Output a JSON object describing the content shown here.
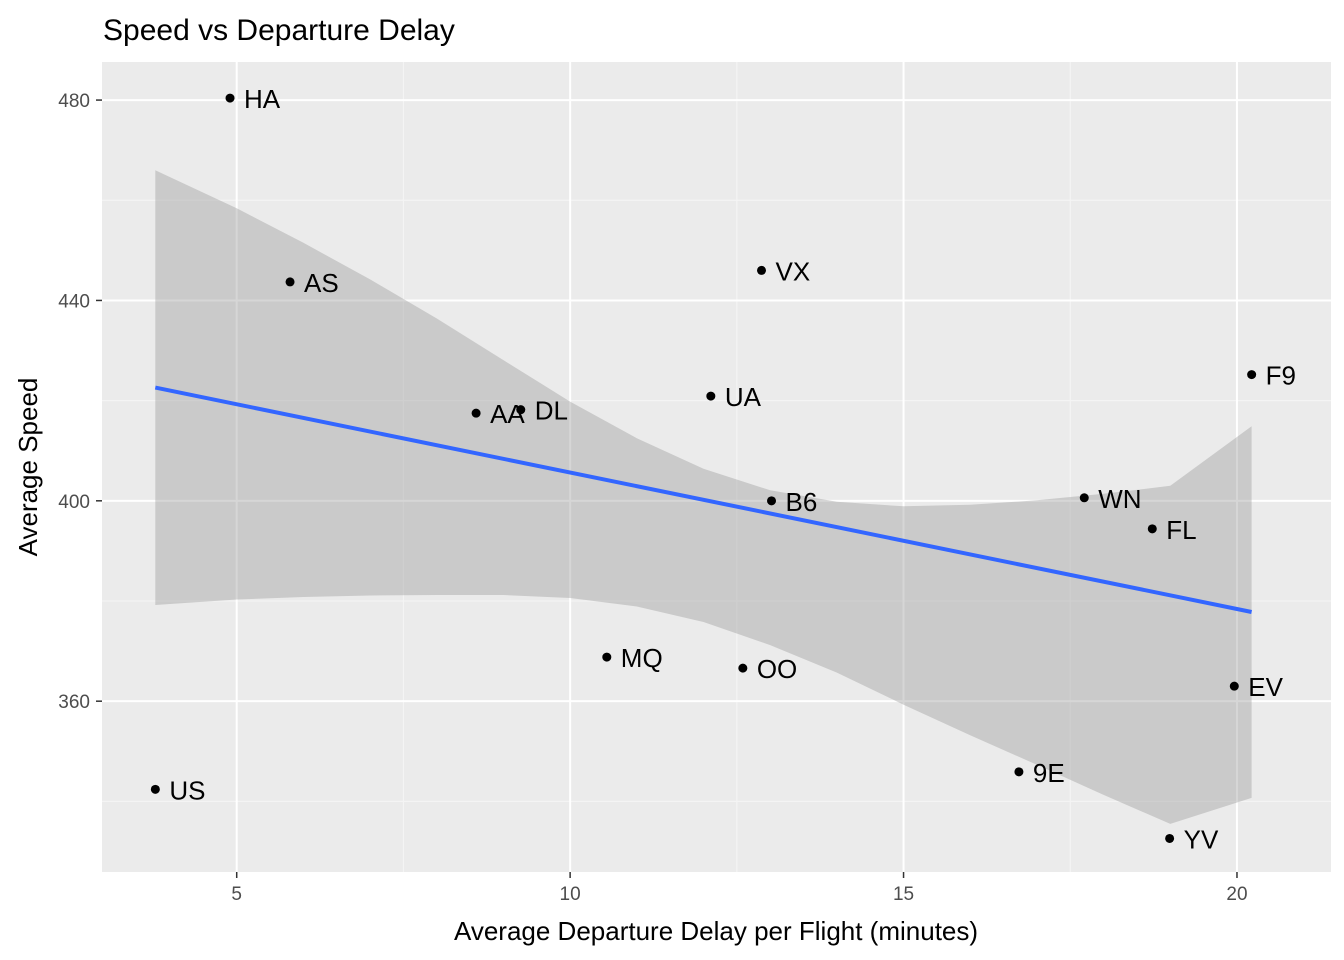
{
  "chart_data": {
    "type": "scatter",
    "title": "Speed vs Departure Delay",
    "xlabel": "Average Departure Delay per Flight (minutes)",
    "ylabel": "Average Speed",
    "xlim": [
      2.98,
      21.41
    ],
    "ylim": [
      325.9,
      487.6
    ],
    "xticks": [
      5,
      10,
      15,
      20
    ],
    "yticks": [
      360,
      400,
      440,
      480
    ],
    "grid": true,
    "legend": "none",
    "points": [
      {
        "label": "HA",
        "x": 4.9,
        "y": 480.4
      },
      {
        "label": "AS",
        "x": 5.8,
        "y": 443.7
      },
      {
        "label": "VX",
        "x": 12.87,
        "y": 446.0
      },
      {
        "label": "F9",
        "x": 20.22,
        "y": 425.2
      },
      {
        "label": "UA",
        "x": 12.11,
        "y": 420.9
      },
      {
        "label": "AA",
        "x": 8.59,
        "y": 417.5
      },
      {
        "label": "DL",
        "x": 9.26,
        "y": 418.2
      },
      {
        "label": "B6",
        "x": 13.02,
        "y": 400.0
      },
      {
        "label": "WN",
        "x": 17.71,
        "y": 400.6
      },
      {
        "label": "FL",
        "x": 18.73,
        "y": 394.4
      },
      {
        "label": "MQ",
        "x": 10.55,
        "y": 368.8
      },
      {
        "label": "OO",
        "x": 12.59,
        "y": 366.6
      },
      {
        "label": "EV",
        "x": 19.96,
        "y": 363.0
      },
      {
        "label": "US",
        "x": 3.78,
        "y": 342.4
      },
      {
        "label": "9E",
        "x": 16.73,
        "y": 345.9
      },
      {
        "label": "YV",
        "x": 18.99,
        "y": 332.6
      }
    ],
    "trend_line": {
      "x": [
        3.78,
        20.22
      ],
      "y": [
        422.6,
        377.8
      ]
    },
    "confidence_band": {
      "x": [
        3.78,
        5,
        6,
        7,
        8,
        9,
        10,
        11,
        12,
        13,
        14,
        15,
        16,
        17,
        18,
        19,
        20.22
      ],
      "upper": [
        466.0,
        458.4,
        451.5,
        444.2,
        436.4,
        428.1,
        419.8,
        412.5,
        406.4,
        402.1,
        399.8,
        398.9,
        399.2,
        400.1,
        401.4,
        403.0,
        414.9
      ],
      "lower": [
        379.2,
        380.3,
        380.8,
        381.1,
        381.2,
        381.2,
        380.6,
        378.9,
        375.8,
        371.2,
        365.7,
        359.3,
        353.2,
        347.3,
        341.3,
        335.5,
        340.7
      ]
    },
    "colors": {
      "panel": "#ebebeb",
      "grid_major": "#ffffff",
      "grid_minor": "#f4f4f4",
      "point": "#000000",
      "line": "#3366ff",
      "band": "#c6c6c6",
      "tick_text": "#4d4d4d"
    }
  }
}
